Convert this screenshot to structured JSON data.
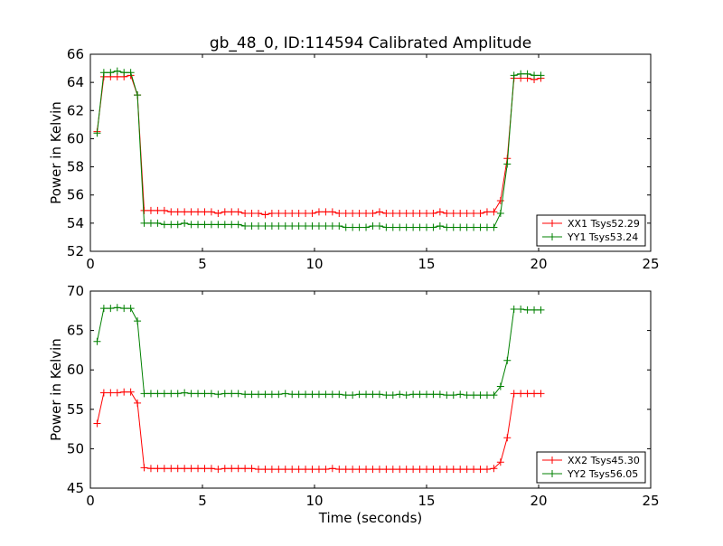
{
  "figure": {
    "title": "gb_48_0, ID:114594 Calibrated Amplitude"
  },
  "chart_data": [
    {
      "type": "line",
      "title": "gb_48_0, ID:114594 Calibrated Amplitude",
      "xlabel": "",
      "ylabel": "Power in Kelvin",
      "xlim": [
        0,
        25
      ],
      "ylim": [
        52,
        66
      ],
      "xticks": [
        0,
        5,
        10,
        15,
        20,
        25
      ],
      "yticks": [
        52,
        54,
        56,
        58,
        60,
        62,
        64,
        66
      ],
      "grid": false,
      "legend_position": "lower-right",
      "x": [
        0.3,
        0.6,
        0.9,
        1.2,
        1.5,
        1.8,
        2.1,
        2.4,
        2.7,
        3.0,
        3.3,
        3.6,
        3.9,
        4.2,
        4.5,
        4.8,
        5.1,
        5.4,
        5.7,
        6.0,
        6.3,
        6.6,
        6.9,
        7.2,
        7.5,
        7.8,
        8.1,
        8.4,
        8.7,
        9.0,
        9.3,
        9.6,
        9.9,
        10.2,
        10.5,
        10.8,
        11.1,
        11.4,
        11.7,
        12.0,
        12.3,
        12.6,
        12.9,
        13.2,
        13.5,
        13.8,
        14.1,
        14.4,
        14.7,
        15.0,
        15.3,
        15.6,
        15.9,
        16.2,
        16.5,
        16.8,
        17.1,
        17.4,
        17.7,
        18.0,
        18.3,
        18.6,
        18.9,
        19.2,
        19.5,
        19.8,
        20.1
      ],
      "series": [
        {
          "name": "XX1 Tsys52.29",
          "color": "#ff0000",
          "values": [
            60.5,
            64.4,
            64.4,
            64.4,
            64.4,
            64.5,
            63.1,
            54.9,
            54.9,
            54.9,
            54.9,
            54.8,
            54.8,
            54.8,
            54.8,
            54.8,
            54.8,
            54.8,
            54.7,
            54.8,
            54.8,
            54.8,
            54.7,
            54.7,
            54.7,
            54.6,
            54.7,
            54.7,
            54.7,
            54.7,
            54.7,
            54.7,
            54.7,
            54.8,
            54.8,
            54.8,
            54.7,
            54.7,
            54.7,
            54.7,
            54.7,
            54.7,
            54.8,
            54.7,
            54.7,
            54.7,
            54.7,
            54.7,
            54.7,
            54.7,
            54.7,
            54.8,
            54.7,
            54.7,
            54.7,
            54.7,
            54.7,
            54.7,
            54.8,
            54.8,
            55.6,
            58.6,
            64.3,
            64.3,
            64.3,
            64.2,
            64.3
          ]
        },
        {
          "name": "YY1 Tsys53.24",
          "color": "#008000",
          "values": [
            60.4,
            64.7,
            64.7,
            64.8,
            64.7,
            64.7,
            63.1,
            54.0,
            54.0,
            54.0,
            53.9,
            53.9,
            53.9,
            54.0,
            53.9,
            53.9,
            53.9,
            53.9,
            53.9,
            53.9,
            53.9,
            53.9,
            53.8,
            53.8,
            53.8,
            53.8,
            53.8,
            53.8,
            53.8,
            53.8,
            53.8,
            53.8,
            53.8,
            53.8,
            53.8,
            53.8,
            53.8,
            53.7,
            53.7,
            53.7,
            53.7,
            53.8,
            53.8,
            53.7,
            53.7,
            53.7,
            53.7,
            53.7,
            53.7,
            53.7,
            53.7,
            53.8,
            53.7,
            53.7,
            53.7,
            53.7,
            53.7,
            53.7,
            53.7,
            53.7,
            54.7,
            58.2,
            64.5,
            64.6,
            64.6,
            64.5,
            64.5
          ]
        }
      ]
    },
    {
      "type": "line",
      "title": "",
      "xlabel": "Time (seconds)",
      "ylabel": "Power in Kelvin",
      "xlim": [
        0,
        25
      ],
      "ylim": [
        45,
        70
      ],
      "xticks": [
        0,
        5,
        10,
        15,
        20,
        25
      ],
      "yticks": [
        45,
        50,
        55,
        60,
        65,
        70
      ],
      "grid": false,
      "legend_position": "lower-right",
      "x": [
        0.3,
        0.6,
        0.9,
        1.2,
        1.5,
        1.8,
        2.1,
        2.4,
        2.7,
        3.0,
        3.3,
        3.6,
        3.9,
        4.2,
        4.5,
        4.8,
        5.1,
        5.4,
        5.7,
        6.0,
        6.3,
        6.6,
        6.9,
        7.2,
        7.5,
        7.8,
        8.1,
        8.4,
        8.7,
        9.0,
        9.3,
        9.6,
        9.9,
        10.2,
        10.5,
        10.8,
        11.1,
        11.4,
        11.7,
        12.0,
        12.3,
        12.6,
        12.9,
        13.2,
        13.5,
        13.8,
        14.1,
        14.4,
        14.7,
        15.0,
        15.3,
        15.6,
        15.9,
        16.2,
        16.5,
        16.8,
        17.1,
        17.4,
        17.7,
        18.0,
        18.3,
        18.6,
        18.9,
        19.2,
        19.5,
        19.8,
        20.1
      ],
      "series": [
        {
          "name": "XX2 Tsys45.30",
          "color": "#ff0000",
          "values": [
            53.2,
            57.1,
            57.1,
            57.1,
            57.2,
            57.2,
            55.8,
            47.6,
            47.5,
            47.5,
            47.5,
            47.5,
            47.5,
            47.5,
            47.5,
            47.5,
            47.5,
            47.5,
            47.4,
            47.5,
            47.5,
            47.5,
            47.5,
            47.5,
            47.4,
            47.4,
            47.4,
            47.4,
            47.4,
            47.4,
            47.4,
            47.4,
            47.4,
            47.4,
            47.4,
            47.5,
            47.4,
            47.4,
            47.4,
            47.4,
            47.4,
            47.4,
            47.4,
            47.4,
            47.4,
            47.4,
            47.4,
            47.4,
            47.4,
            47.4,
            47.4,
            47.4,
            47.4,
            47.4,
            47.4,
            47.4,
            47.4,
            47.4,
            47.4,
            47.5,
            48.3,
            51.4,
            57.0,
            57.0,
            57.0,
            57.0,
            57.0
          ]
        },
        {
          "name": "YY2 Tsys56.05",
          "color": "#008000",
          "values": [
            63.6,
            67.8,
            67.8,
            67.9,
            67.8,
            67.8,
            66.2,
            57.0,
            57.0,
            57.0,
            57.0,
            57.0,
            57.0,
            57.1,
            57.0,
            57.0,
            57.0,
            57.0,
            56.9,
            57.0,
            57.0,
            57.0,
            56.9,
            56.9,
            56.9,
            56.9,
            56.9,
            56.9,
            57.0,
            56.9,
            56.9,
            56.9,
            56.9,
            56.9,
            56.9,
            56.9,
            56.9,
            56.8,
            56.8,
            56.9,
            56.9,
            56.9,
            56.9,
            56.8,
            56.8,
            56.9,
            56.8,
            56.9,
            56.9,
            56.9,
            56.9,
            56.9,
            56.8,
            56.8,
            56.9,
            56.8,
            56.8,
            56.8,
            56.8,
            56.8,
            57.9,
            61.2,
            67.7,
            67.7,
            67.6,
            67.6,
            67.6
          ]
        }
      ]
    }
  ]
}
